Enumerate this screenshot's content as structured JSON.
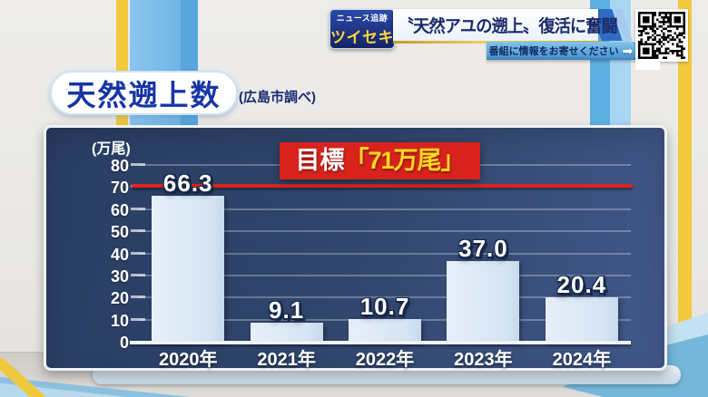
{
  "top_banner": {
    "badge": {
      "line1": "ニュース追跡",
      "line2": "ツイセキ"
    },
    "headline": "〝天然アユの遡上〟復活に奮闘",
    "info_bar": {
      "text": "番組に情報をお寄せください",
      "arrow": "➡"
    }
  },
  "chart_header": {
    "title": "天然遡上数",
    "source": "(広島市調べ)"
  },
  "chart_data": {
    "type": "bar",
    "title": "天然遡上数",
    "source_note": "(広島市調べ)",
    "unit_label": "(万尾)",
    "categories": [
      "2020年",
      "2021年",
      "2022年",
      "2023年",
      "2024年"
    ],
    "values": [
      66.3,
      9.1,
      10.7,
      37.0,
      20.4
    ],
    "value_labels": [
      "66.3",
      "9.1",
      "10.7",
      "37.0",
      "20.4"
    ],
    "ylim": [
      0,
      80
    ],
    "ytick_step": 10,
    "grid": true,
    "legend": false,
    "target_line": {
      "value": 71,
      "label_prefix": "目標",
      "label_value": "「71万尾」"
    },
    "colors": {
      "bar": "#d9e7f5",
      "panel_navy": "#31466d",
      "target_red": "#dd241d",
      "target_label_yellow": "#ffd81e"
    }
  }
}
